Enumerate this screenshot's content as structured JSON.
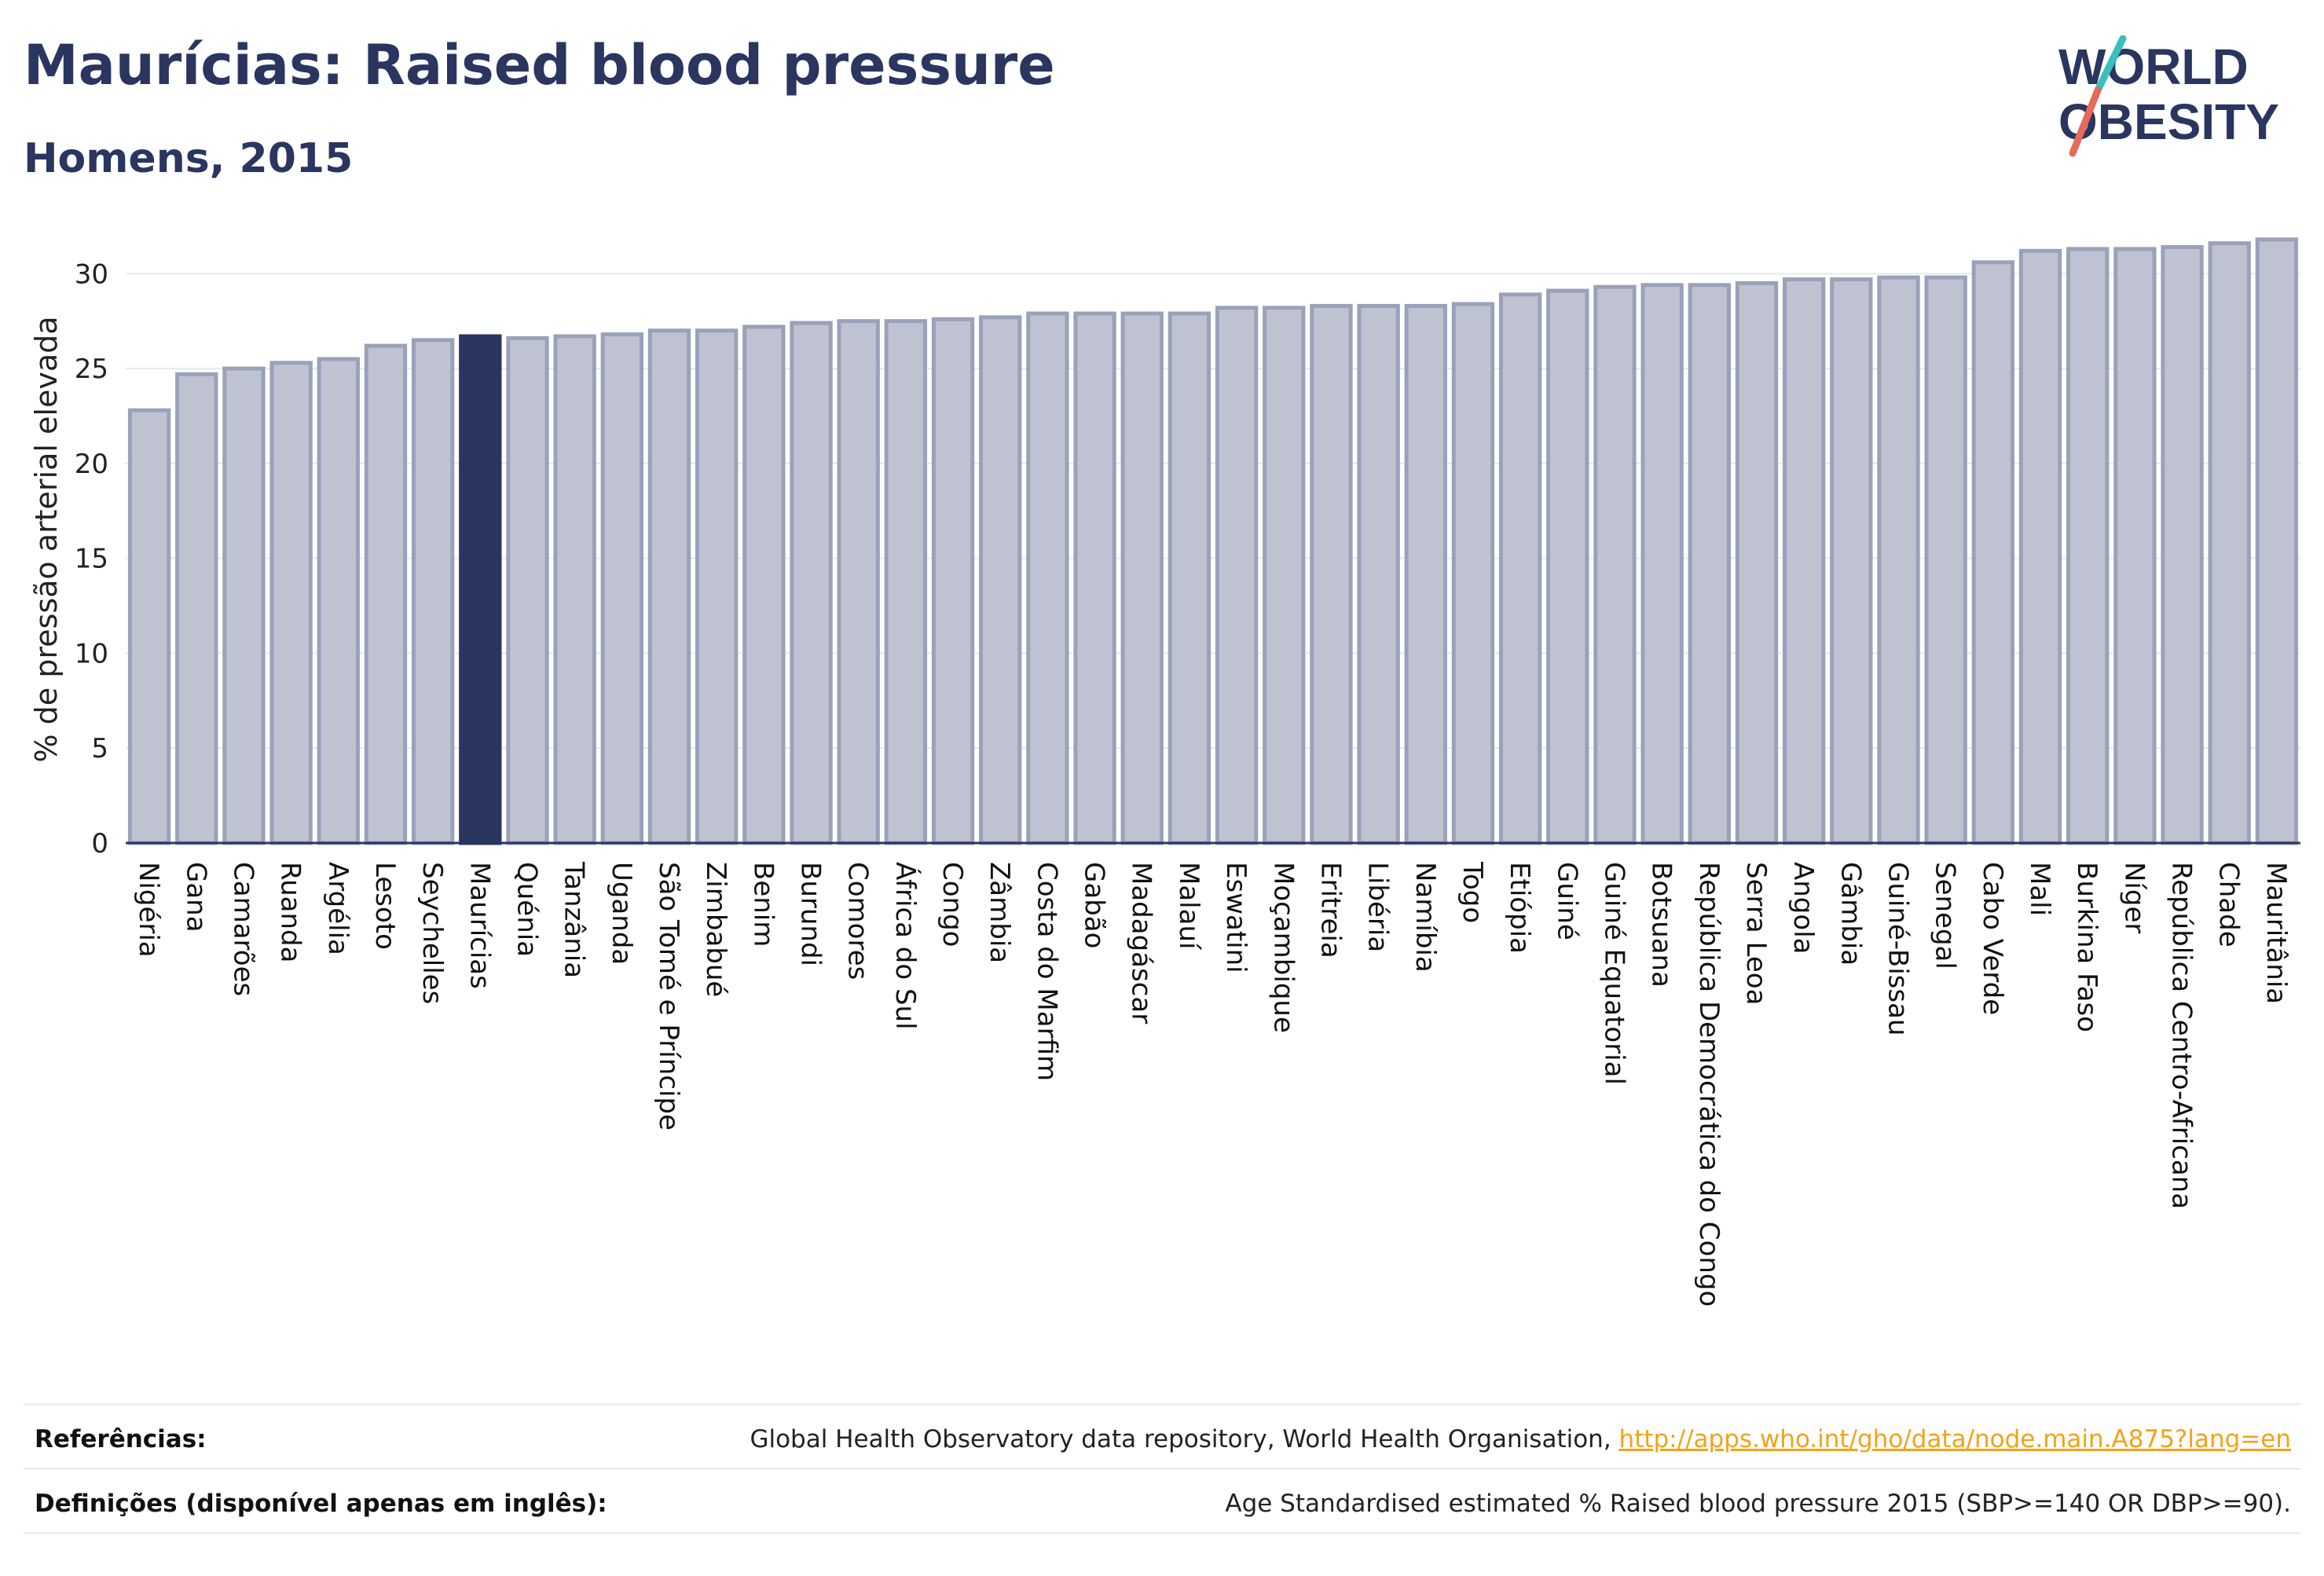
{
  "header": {
    "title": "Maurícias: Raised blood pressure",
    "subtitle": "Homens, 2015"
  },
  "logo": {
    "line1": "WORLD",
    "line2": "OBESITY"
  },
  "chart_data": {
    "type": "bar",
    "ylabel": "% de pressão arterial elevada",
    "ylim": [
      0,
      32
    ],
    "yticks": [
      0,
      5,
      10,
      15,
      20,
      25,
      30
    ],
    "highlight": "Maurícias",
    "colors": {
      "bar": "#bfc3d1",
      "bar_border": "#9aa1b8",
      "highlight": "#2a3560",
      "grid": "#e6e8ee"
    },
    "categories": [
      "Nigéria",
      "Gana",
      "Camarões",
      "Ruanda",
      "Argélia",
      "Lesoto",
      "Seychelles",
      "Maurícias",
      "Quénia",
      "Tanzânia",
      "Uganda",
      "São Tomé e Príncipe",
      "Zimbabué",
      "Benim",
      "Burundi",
      "Comores",
      "África do Sul",
      "Congo",
      "Zâmbia",
      "Costa do Marfim",
      "Gabão",
      "Madagáscar",
      "Malauí",
      "Eswatini",
      "Moçambique",
      "Eritreia",
      "Libéria",
      "Namíbia",
      "Togo",
      "Etiópia",
      "Guiné",
      "Guiné Equatorial",
      "Botsuana",
      "República Democrática do Congo",
      "Serra Leoa",
      "Angola",
      "Gâmbia",
      "Guiné-Bissau",
      "Senegal",
      "Cabo Verde",
      "Mali",
      "Burkina Faso",
      "Níger",
      "República Centro-Africana",
      "Chade",
      "Mauritânia"
    ],
    "values": [
      22.8,
      24.7,
      25.0,
      25.3,
      25.5,
      26.2,
      26.5,
      26.7,
      26.6,
      26.7,
      26.8,
      27.0,
      27.0,
      27.2,
      27.4,
      27.5,
      27.5,
      27.6,
      27.7,
      27.9,
      27.9,
      27.9,
      27.9,
      28.2,
      28.2,
      28.3,
      28.3,
      28.3,
      28.4,
      28.9,
      29.1,
      29.3,
      29.4,
      29.4,
      29.5,
      29.7,
      29.7,
      29.8,
      29.8,
      30.6,
      31.2,
      31.3,
      31.3,
      31.4,
      31.6,
      31.8
    ]
  },
  "footer": {
    "references_label": "Referências:",
    "references_text": "Global Health Observatory data repository, World Health Organisation,",
    "references_link": "http://apps.who.int/gho/data/node.main.A875?lang=en",
    "definitions_label": "Definições (disponível apenas em inglês):",
    "definitions_text": "Age Standardised estimated % Raised blood pressure 2015 (SBP>=140 OR DBP>=90)."
  }
}
